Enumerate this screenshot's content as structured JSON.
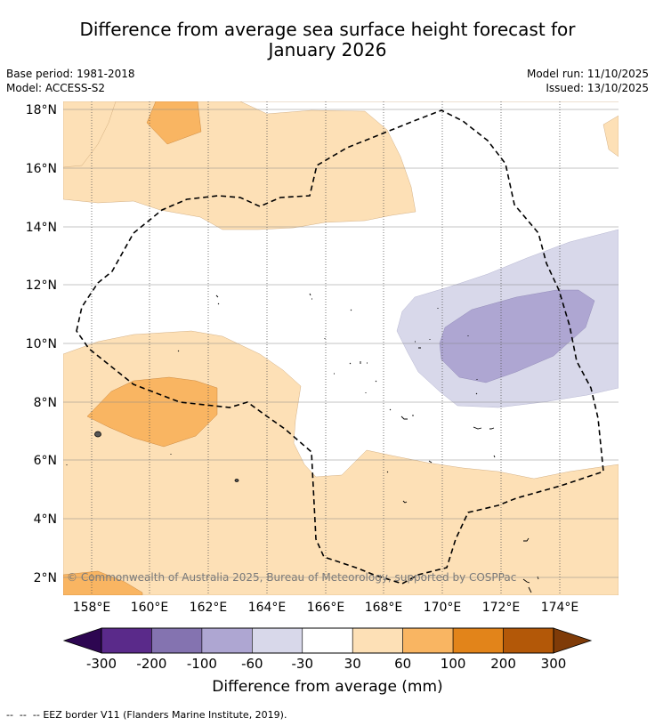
{
  "title": {
    "line1": "Difference from average sea surface height forecast for",
    "line2": "January 2026"
  },
  "meta": {
    "base_period": "Base period: 1981-2018",
    "model": "Model: ACCESS-S2",
    "model_run": "Model run: 11/10/2025",
    "issued": "Issued: 13/10/2025"
  },
  "map": {
    "lat_labels": [
      "18°N",
      "16°N",
      "14°N",
      "12°N",
      "10°N",
      "8°N",
      "6°N",
      "4°N",
      "2°N"
    ],
    "lon_labels": [
      "158°E",
      "160°E",
      "162°E",
      "164°E",
      "166°E",
      "168°E",
      "170°E",
      "172°E",
      "174°E"
    ],
    "copyright": "© Commonwealth of Australia 2025, Bureau of Meteorology, supported by COSPPac"
  },
  "colorbar": {
    "ticks": [
      "-300",
      "-200",
      "-100",
      "-60",
      "-30",
      "30",
      "60",
      "100",
      "200",
      "300"
    ],
    "colors": [
      "#5a2a8a",
      "#8473b0",
      "#aea6d2",
      "#d8d8ea",
      "#ffffff",
      "#fde0b6",
      "#f9b562",
      "#e2841a",
      "#b35808"
    ],
    "low_extend_color": "#2d0651",
    "high_extend_color": "#7f3b08",
    "label": "Difference from average (mm)"
  },
  "legend": {
    "eez_text": "EEZ border V11 (Flanders Marine Institute, 2019)."
  }
}
